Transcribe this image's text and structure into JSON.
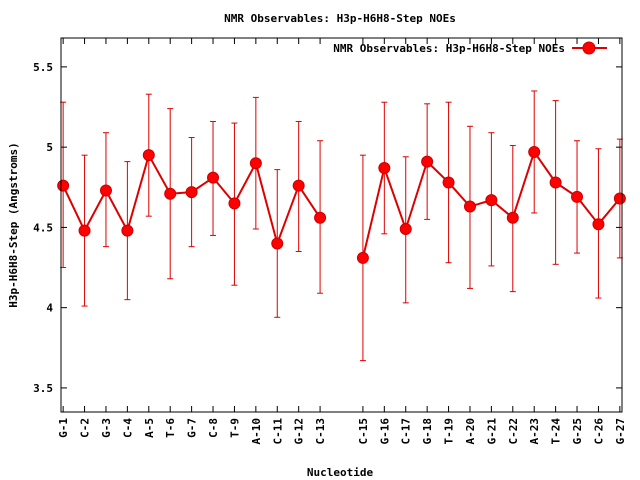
{
  "chart_data": {
    "type": "line",
    "title": "NMR Observables: H3p-H6H8-Step NOEs",
    "xlabel": "Nucleotide",
    "ylabel": "H3p-H6H8-Step (Angstroms)",
    "ylim": [
      3.35,
      5.68
    ],
    "yticks": [
      3.5,
      4,
      4.5,
      5,
      5.5
    ],
    "ytick_labels": [
      "3.5",
      "4",
      "4.5",
      "5",
      "5.5"
    ],
    "xlim": [
      0.9,
      27.1
    ],
    "grid": false,
    "legend_position": "top-right",
    "colors": {
      "series": "#ff0000",
      "line": "#dd0000",
      "frame": "#000000"
    },
    "x_ticks": [
      {
        "x": 1,
        "label": "G-1"
      },
      {
        "x": 2,
        "label": "C-2"
      },
      {
        "x": 3,
        "label": "G-3"
      },
      {
        "x": 4,
        "label": "C-4"
      },
      {
        "x": 5,
        "label": "A-5"
      },
      {
        "x": 6,
        "label": "T-6"
      },
      {
        "x": 7,
        "label": "G-7"
      },
      {
        "x": 8,
        "label": "C-8"
      },
      {
        "x": 9,
        "label": "T-9"
      },
      {
        "x": 10,
        "label": "A-10"
      },
      {
        "x": 11,
        "label": "C-11"
      },
      {
        "x": 12,
        "label": "G-12"
      },
      {
        "x": 13,
        "label": "C-13"
      },
      {
        "x": 15,
        "label": "C-15"
      },
      {
        "x": 16,
        "label": "G-16"
      },
      {
        "x": 17,
        "label": "C-17"
      },
      {
        "x": 18,
        "label": "G-18"
      },
      {
        "x": 19,
        "label": "T-19"
      },
      {
        "x": 20,
        "label": "A-20"
      },
      {
        "x": 21,
        "label": "G-21"
      },
      {
        "x": 22,
        "label": "C-22"
      },
      {
        "x": 23,
        "label": "A-23"
      },
      {
        "x": 24,
        "label": "T-24"
      },
      {
        "x": 25,
        "label": "G-25"
      },
      {
        "x": 26,
        "label": "C-26"
      },
      {
        "x": 27,
        "label": "G-27"
      }
    ],
    "series": [
      {
        "name": "NMR Observables: H3p-H6H8-Step NOEs",
        "segments": [
          [
            {
              "x": 1,
              "y": 4.76,
              "lo": 4.25,
              "hi": 5.28
            },
            {
              "x": 2,
              "y": 4.48,
              "lo": 4.01,
              "hi": 4.95
            },
            {
              "x": 3,
              "y": 4.73,
              "lo": 4.38,
              "hi": 5.09
            },
            {
              "x": 4,
              "y": 4.48,
              "lo": 4.05,
              "hi": 4.91
            },
            {
              "x": 5,
              "y": 4.95,
              "lo": 4.57,
              "hi": 5.33
            },
            {
              "x": 6,
              "y": 4.71,
              "lo": 4.18,
              "hi": 5.24
            },
            {
              "x": 7,
              "y": 4.72,
              "lo": 4.38,
              "hi": 5.06
            },
            {
              "x": 8,
              "y": 4.81,
              "lo": 4.45,
              "hi": 5.16
            },
            {
              "x": 9,
              "y": 4.65,
              "lo": 4.14,
              "hi": 5.15
            },
            {
              "x": 10,
              "y": 4.9,
              "lo": 4.49,
              "hi": 5.31
            },
            {
              "x": 11,
              "y": 4.4,
              "lo": 3.94,
              "hi": 4.86
            },
            {
              "x": 12,
              "y": 4.76,
              "lo": 4.35,
              "hi": 5.16
            },
            {
              "x": 13,
              "y": 4.56,
              "lo": 4.09,
              "hi": 5.04
            }
          ],
          [
            {
              "x": 15,
              "y": 4.31,
              "lo": 3.67,
              "hi": 4.95
            },
            {
              "x": 16,
              "y": 4.87,
              "lo": 4.46,
              "hi": 5.28
            },
            {
              "x": 17,
              "y": 4.49,
              "lo": 4.03,
              "hi": 4.94
            },
            {
              "x": 18,
              "y": 4.91,
              "lo": 4.55,
              "hi": 5.27
            },
            {
              "x": 19,
              "y": 4.78,
              "lo": 4.28,
              "hi": 5.28
            },
            {
              "x": 20,
              "y": 4.63,
              "lo": 4.12,
              "hi": 5.13
            },
            {
              "x": 21,
              "y": 4.67,
              "lo": 4.26,
              "hi": 5.09
            },
            {
              "x": 22,
              "y": 4.56,
              "lo": 4.1,
              "hi": 5.01
            },
            {
              "x": 23,
              "y": 4.97,
              "lo": 4.59,
              "hi": 5.35
            },
            {
              "x": 24,
              "y": 4.78,
              "lo": 4.27,
              "hi": 5.29
            },
            {
              "x": 25,
              "y": 4.69,
              "lo": 4.34,
              "hi": 5.04
            },
            {
              "x": 26,
              "y": 4.52,
              "lo": 4.06,
              "hi": 4.99
            },
            {
              "x": 27,
              "y": 4.68,
              "lo": 4.31,
              "hi": 5.05
            }
          ]
        ]
      }
    ]
  }
}
